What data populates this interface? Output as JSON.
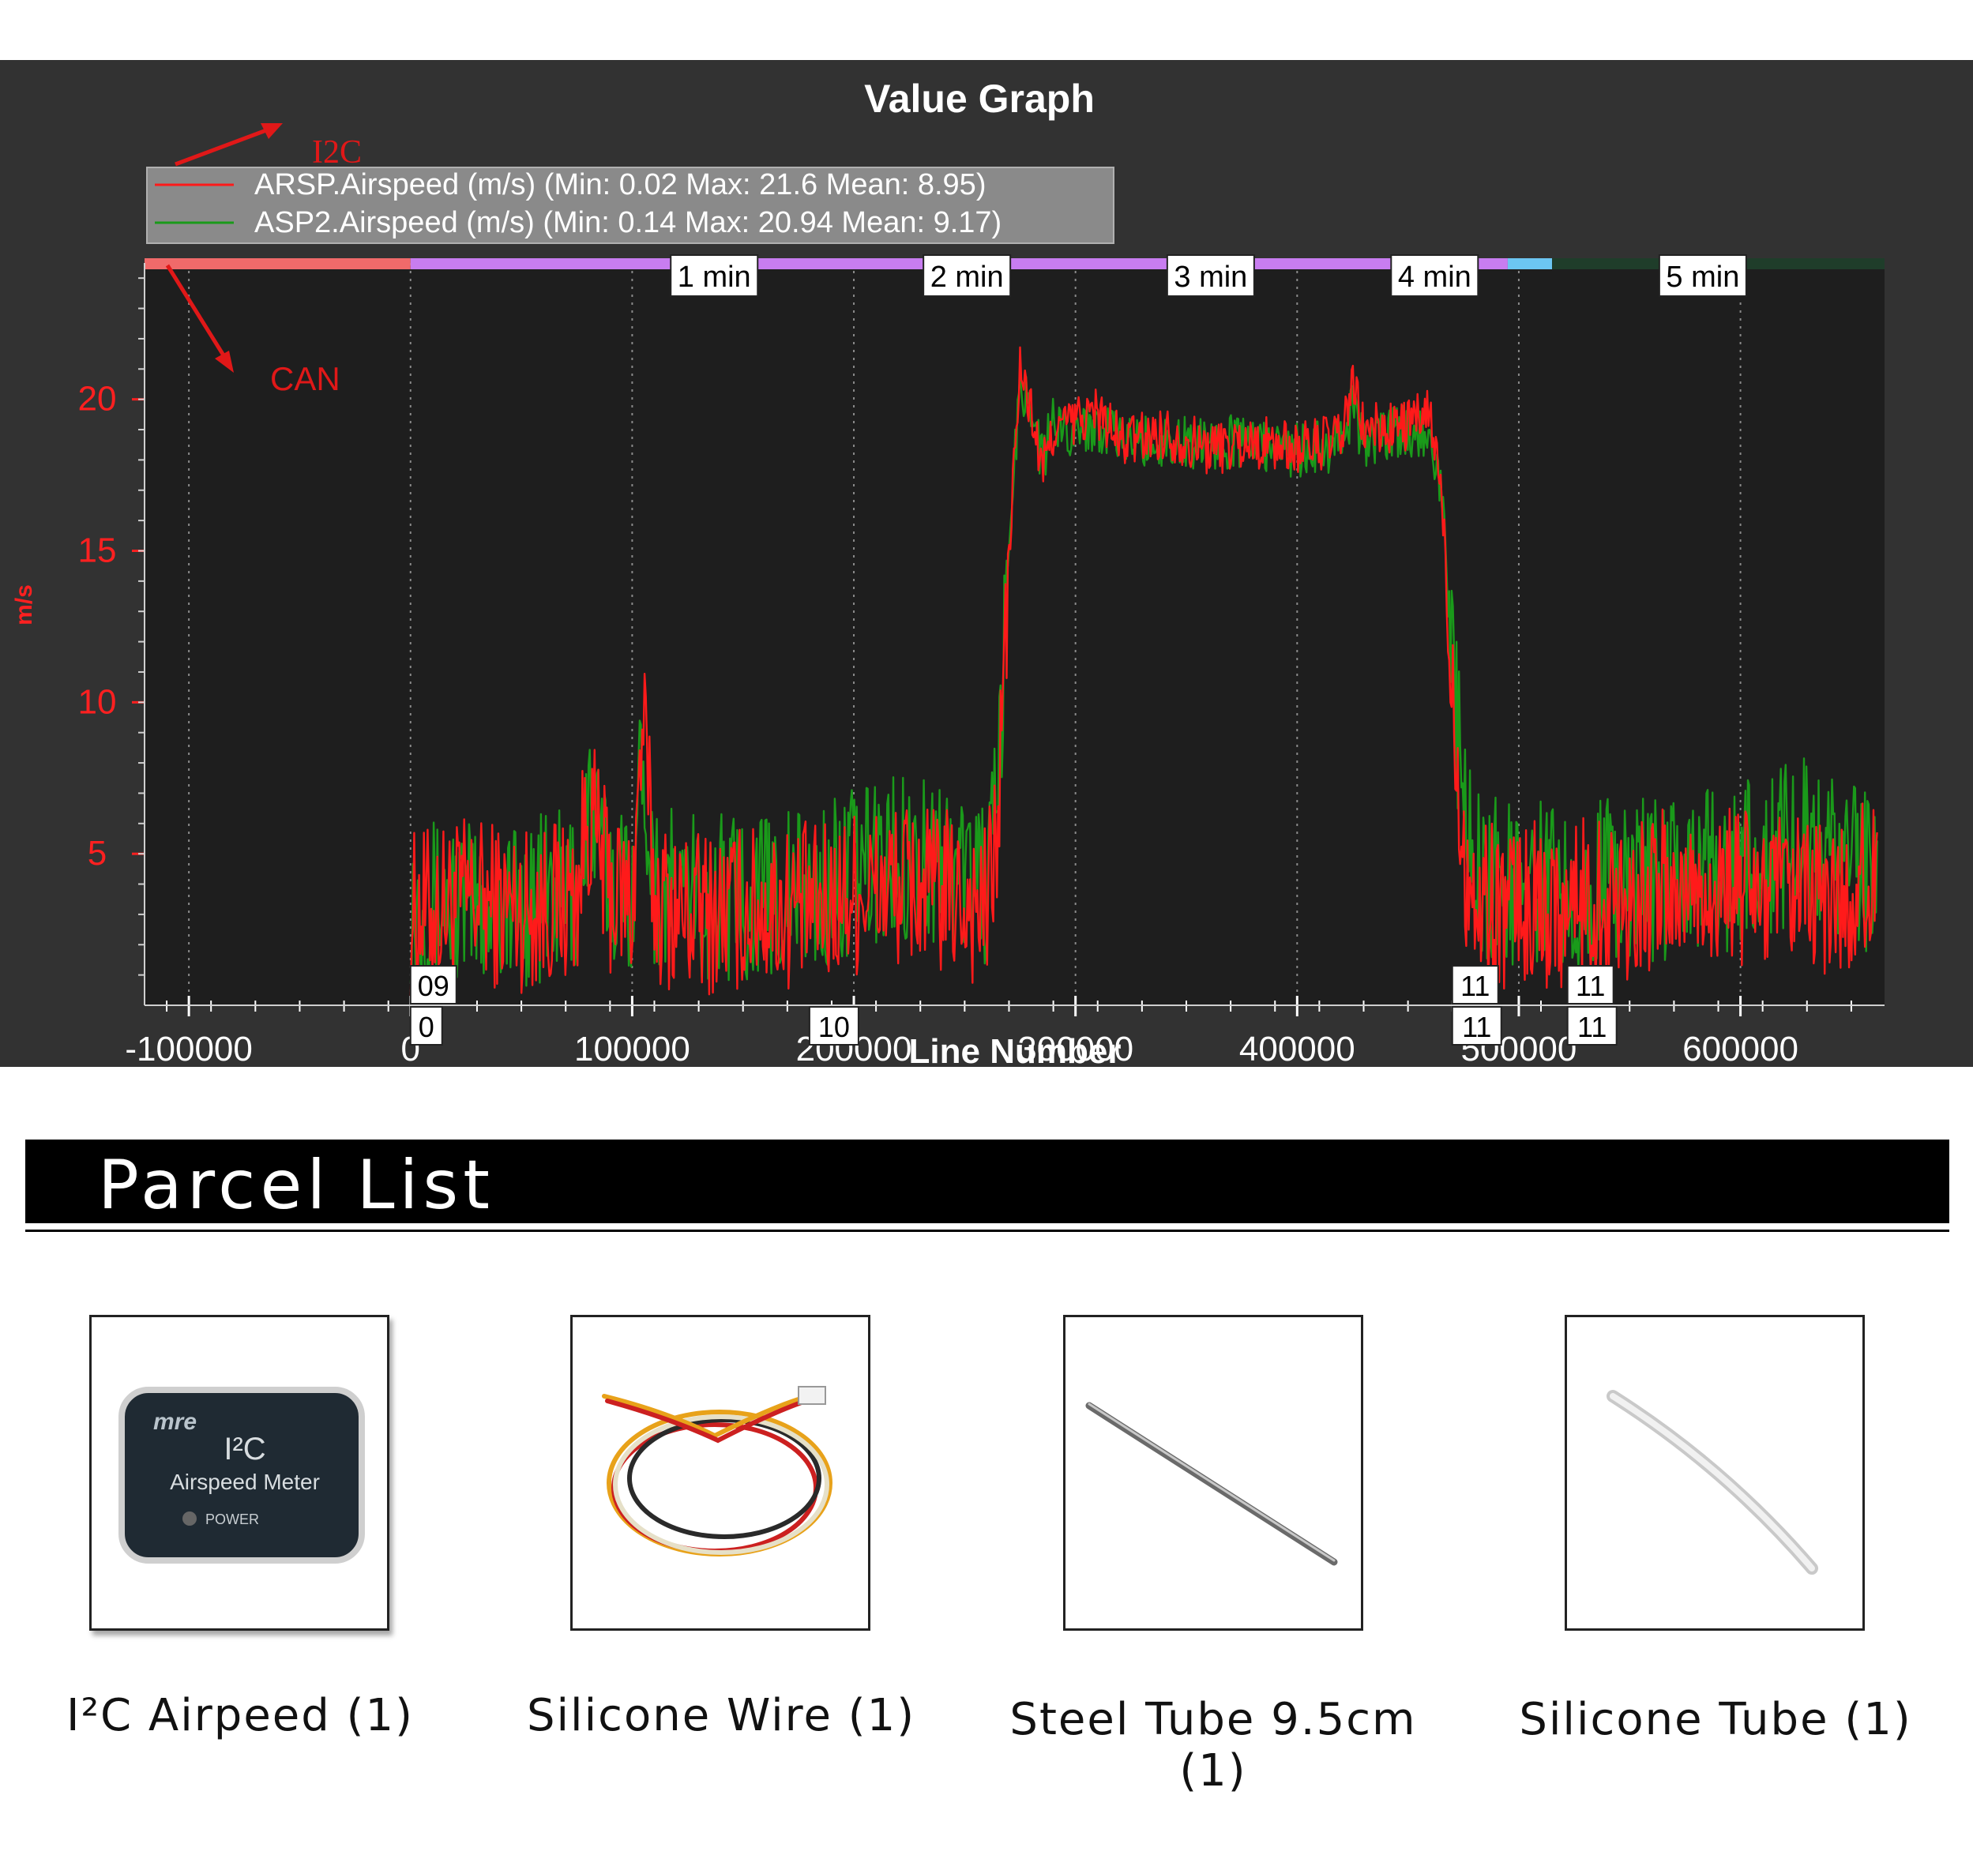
{
  "chart_data": {
    "type": "line",
    "title": "Value Graph",
    "xlabel": "Line Number",
    "ylabel": "m/s",
    "xlim": [
      -120000,
      665000
    ],
    "ylim": [
      0,
      24.5
    ],
    "x_ticks": [
      -100000,
      0,
      100000,
      200000,
      300000,
      400000,
      500000,
      600000
    ],
    "x_tick_labels": [
      "-100000",
      "0",
      "100000",
      "200000",
      "300000",
      "400000",
      "500000",
      "600000"
    ],
    "y_ticks": [
      5,
      10,
      15,
      20
    ],
    "y_tick_labels": [
      "5",
      "10",
      "15",
      "20"
    ],
    "grid": true,
    "legend_position": "top-left",
    "colors": {
      "arsp": "#ff1a1a",
      "asp2": "#1a9a1a",
      "axis_text": "#ff2020",
      "background": "#1e1e1e"
    },
    "series": [
      {
        "name": "ARSP.Airspeed (m/s) (Min: 0.02 Max: 21.6 Mean: 8.95)",
        "x": [
          0,
          25000,
          50000,
          75000,
          80000,
          90000,
          100000,
          105000,
          110000,
          125000,
          150000,
          175000,
          185000,
          200000,
          225000,
          250000,
          260000,
          265000,
          270000,
          275000,
          280000,
          285000,
          290000,
          300000,
          310000,
          320000,
          340000,
          360000,
          380000,
          400000,
          420000,
          425000,
          430000,
          440000,
          455000,
          460000,
          465000,
          470000,
          475000,
          480000,
          500000,
          525000,
          550000,
          575000,
          600000,
          625000,
          650000,
          662000
        ],
        "y": [
          3.0,
          3.5,
          3.2,
          3.6,
          6.5,
          3.8,
          3.4,
          9.5,
          3.5,
          3.0,
          3.2,
          3.3,
          3.2,
          3.8,
          4.0,
          3.5,
          3.2,
          6.0,
          15.0,
          21.0,
          19.6,
          17.6,
          19.0,
          19.3,
          19.6,
          18.6,
          18.9,
          18.4,
          18.6,
          18.4,
          18.7,
          20.5,
          19.0,
          19.0,
          19.3,
          19.5,
          17.0,
          11.0,
          5.0,
          3.3,
          3.3,
          3.4,
          3.6,
          3.8,
          3.9,
          3.4,
          3.5,
          4.5
        ]
      },
      {
        "name": "ASP2.Airspeed (m/s) (Min: 0.14 Max: 20.94 Mean: 9.17)",
        "x": [
          0,
          25000,
          50000,
          75000,
          80000,
          90000,
          100000,
          105000,
          110000,
          125000,
          150000,
          175000,
          185000,
          200000,
          225000,
          250000,
          260000,
          265000,
          270000,
          275000,
          280000,
          285000,
          290000,
          300000,
          310000,
          320000,
          340000,
          360000,
          380000,
          400000,
          420000,
          425000,
          430000,
          440000,
          455000,
          460000,
          465000,
          470000,
          475000,
          480000,
          500000,
          525000,
          550000,
          575000,
          600000,
          625000,
          650000,
          662000
        ],
        "y": [
          3.5,
          3.3,
          3.4,
          3.8,
          6.5,
          4.2,
          4.0,
          8.5,
          4.0,
          3.5,
          3.6,
          3.7,
          3.7,
          4.5,
          5.0,
          4.5,
          4.0,
          6.5,
          15.5,
          20.5,
          19.8,
          18.0,
          19.2,
          19.0,
          19.2,
          18.6,
          18.6,
          18.6,
          18.6,
          18.3,
          18.5,
          19.8,
          18.6,
          18.8,
          19.0,
          19.0,
          17.0,
          11.5,
          6.5,
          4.2,
          4.0,
          4.0,
          4.2,
          4.3,
          4.5,
          5.5,
          4.8,
          3.8
        ]
      }
    ],
    "time_markers": [
      "1 min",
      "2 min",
      "3 min",
      "4 min",
      "5 min"
    ],
    "mode_labels_top": [
      "09",
      "11",
      "11"
    ],
    "mode_labels_bottom": [
      "0",
      "10",
      "11",
      "11"
    ],
    "annotations": [
      "I2C",
      "CAN"
    ]
  },
  "parcel": {
    "title": "Parcel List",
    "items": [
      {
        "label": "I²C Airpeed (1)",
        "device_logo": "mre",
        "device_title": "I²C",
        "device_subtitle": "Airspeed Meter",
        "device_power": "POWER"
      },
      {
        "label": "Silicone Wire (1)"
      },
      {
        "label": "Steel Tube 9.5cm (1)"
      },
      {
        "label": "Silicone Tube (1)"
      }
    ]
  }
}
